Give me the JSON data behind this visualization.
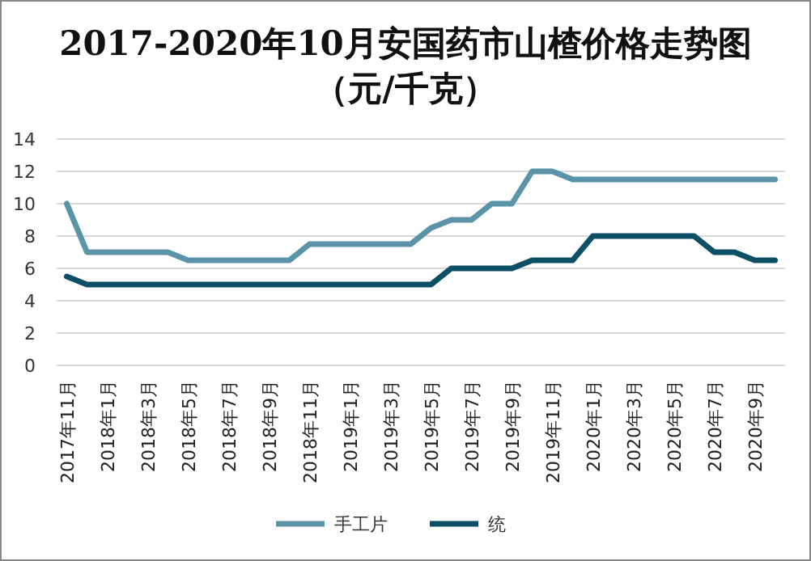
{
  "chart_data": {
    "type": "line",
    "title": "2017-2020年10月安国药市山楂价格走势图（元/千克）",
    "categories": [
      "2017年11月",
      null,
      "2018年1月",
      null,
      "2018年3月",
      null,
      "2018年5月",
      null,
      "2018年7月",
      null,
      "2018年9月",
      null,
      "2018年11月",
      null,
      "2019年1月",
      null,
      "2019年3月",
      null,
      "2019年5月",
      null,
      "2019年7月",
      null,
      "2019年9月",
      null,
      "2019年11月",
      null,
      "2020年1月",
      null,
      "2020年3月",
      null,
      "2020年5月",
      null,
      "2020年7月",
      null,
      "2020年9月",
      null
    ],
    "series": [
      {
        "name": "手工片",
        "color": "#5b93a8",
        "values": [
          10,
          7,
          7,
          7,
          7,
          7,
          6.5,
          6.5,
          6.5,
          6.5,
          6.5,
          6.5,
          7.5,
          7.5,
          7.5,
          7.5,
          7.5,
          7.5,
          8.5,
          9,
          9,
          10,
          10,
          12,
          12,
          11.5,
          11.5,
          11.5,
          11.5,
          11.5,
          11.5,
          11.5,
          11.5,
          11.5,
          11.5,
          11.5
        ]
      },
      {
        "name": "统",
        "color": "#0d4f66",
        "values": [
          5.5,
          5,
          5,
          5,
          5,
          5,
          5,
          5,
          5,
          5,
          5,
          5,
          5,
          5,
          5,
          5,
          5,
          5,
          5,
          6,
          6,
          6,
          6,
          6.5,
          6.5,
          6.5,
          8,
          8,
          8,
          8,
          8,
          8,
          7,
          7,
          6.5,
          6.5
        ]
      }
    ],
    "ylim": [
      0,
      14
    ],
    "yticks": [
      0,
      2,
      4,
      6,
      8,
      10,
      12,
      14
    ],
    "grid": "y",
    "legend": "bottom",
    "marker": "none",
    "line_style": "solid"
  }
}
